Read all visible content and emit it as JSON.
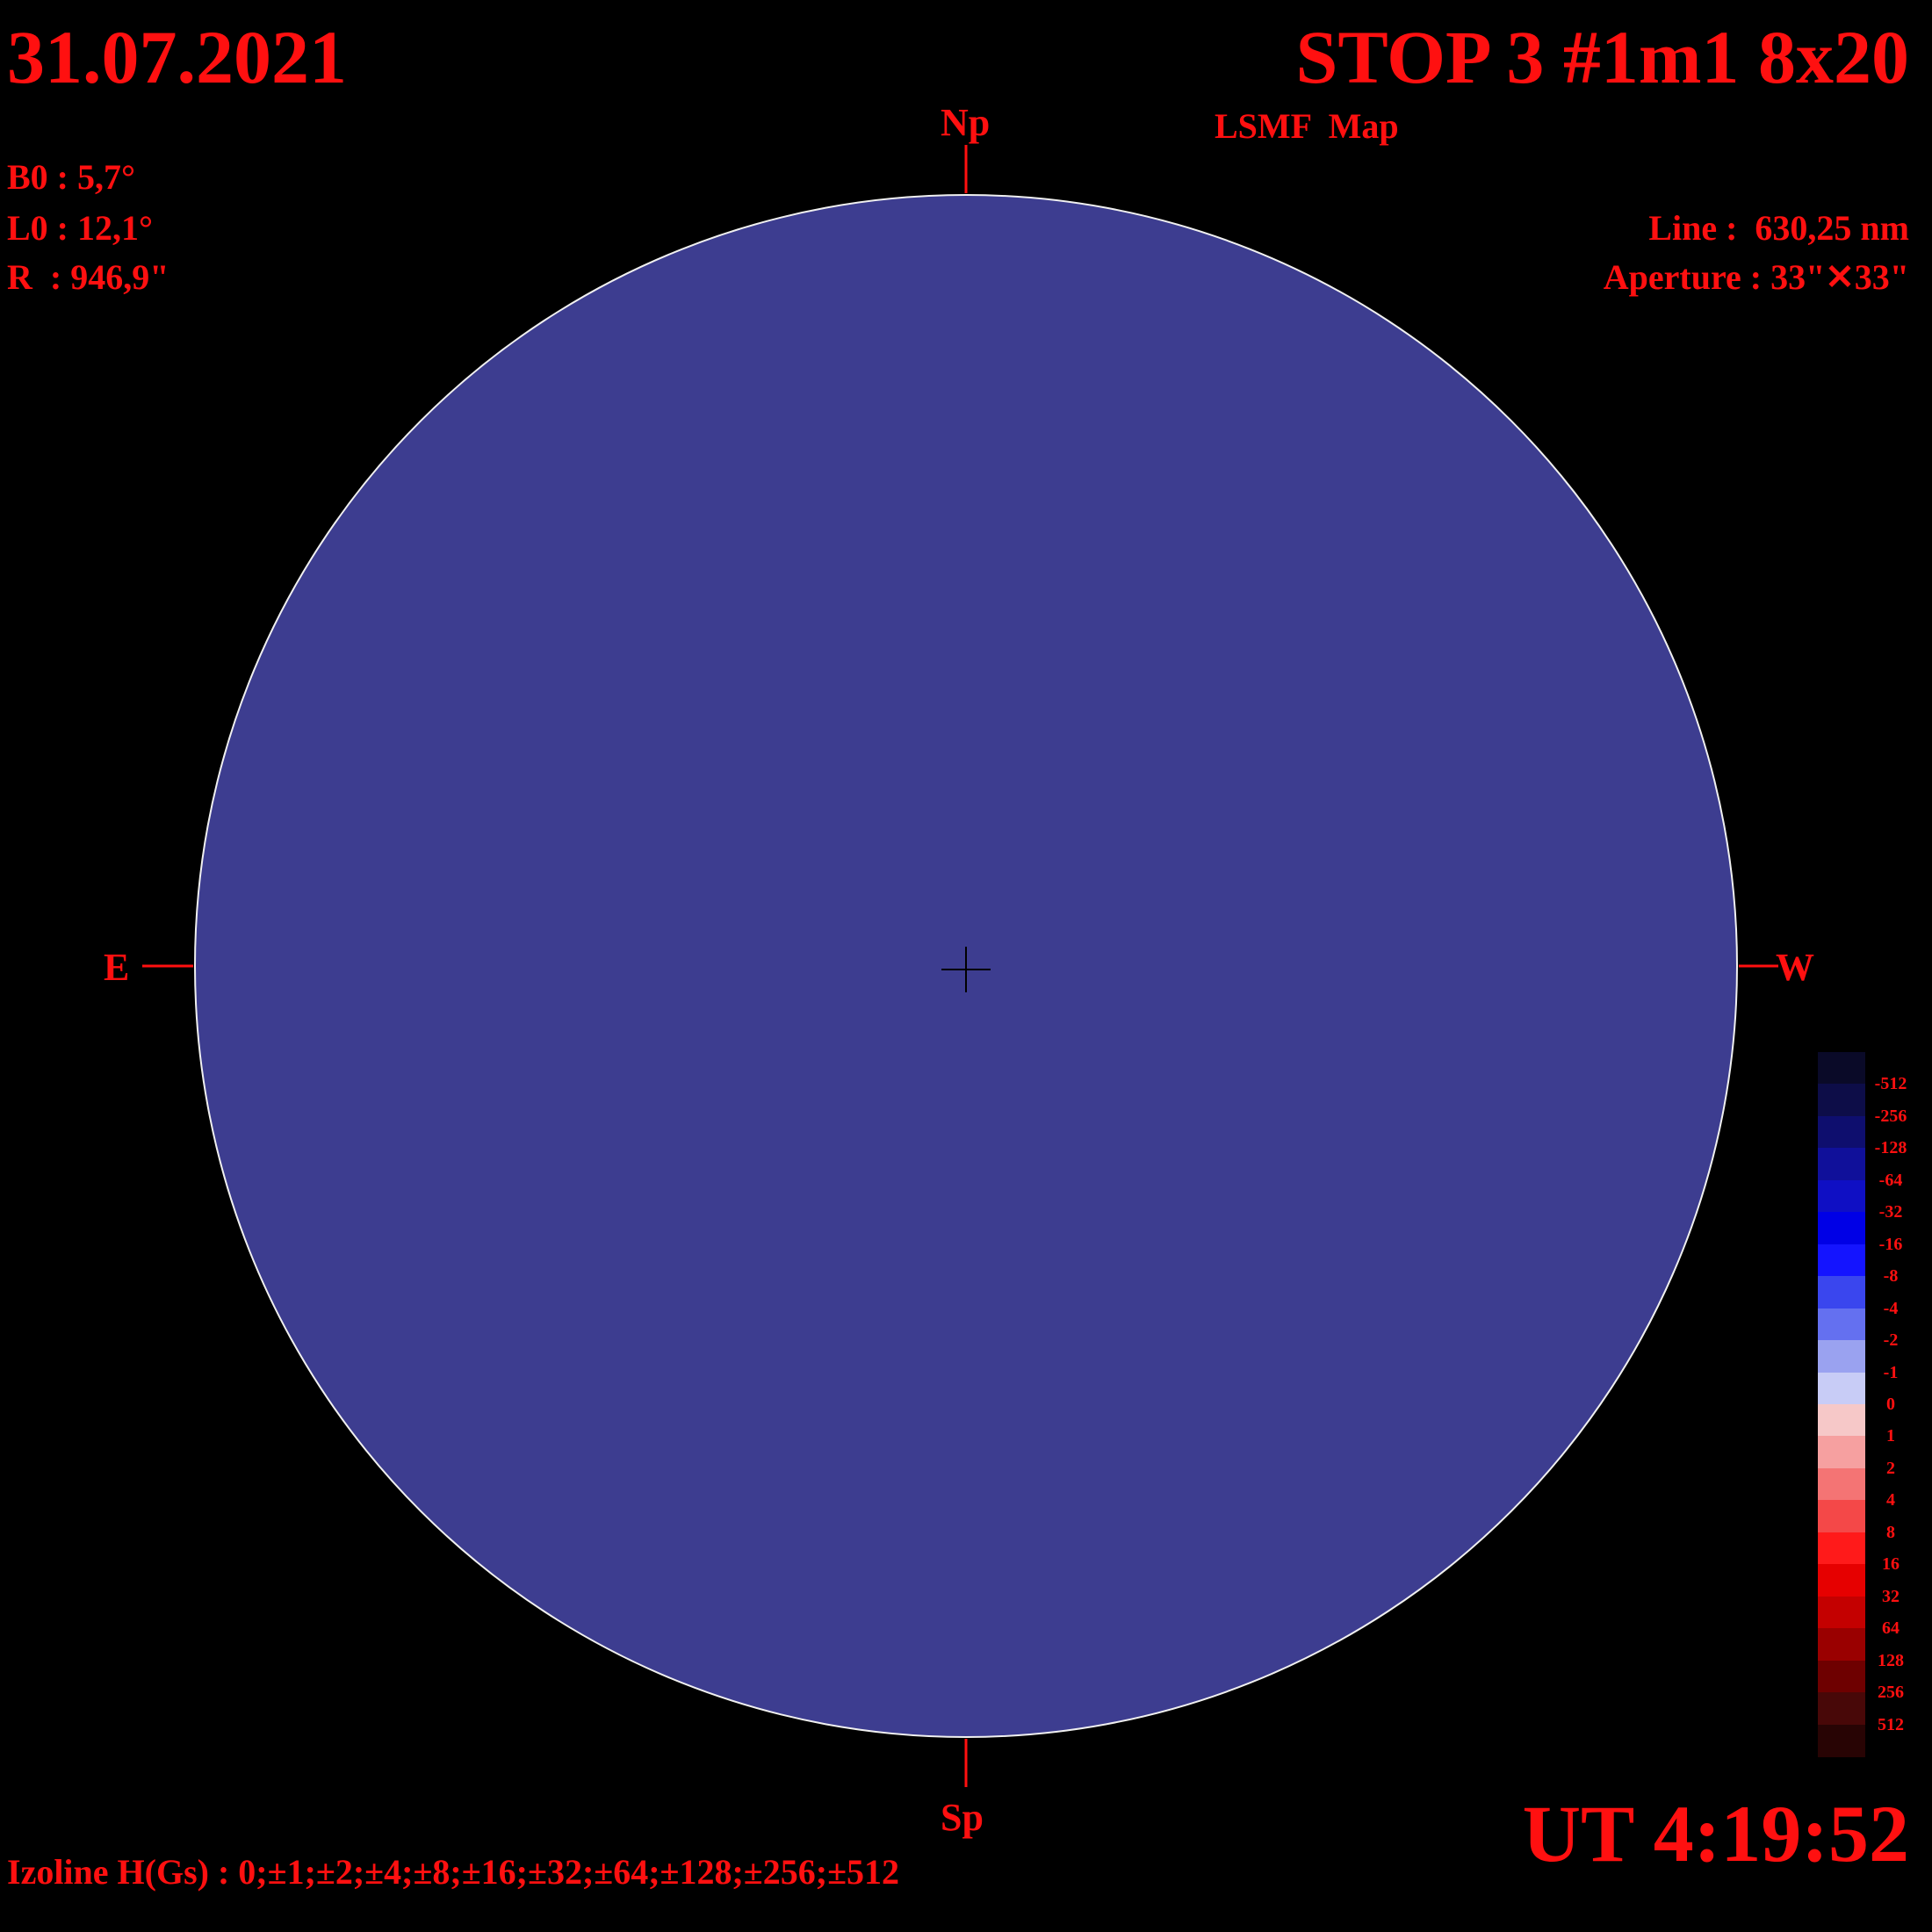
{
  "header": {
    "date": "31.07.2021",
    "title": "STOP 3 #1m1 8x20",
    "subtitle": "LSMF  Map"
  },
  "params": {
    "b0": "B0 : 5,7°",
    "l0": "L0 : 12,1°",
    "r": "R  : 946,9\""
  },
  "instrument": {
    "line": "Line :  630,25 nm",
    "aperture": "Aperture : 33\"✕33\""
  },
  "directions": {
    "north": "Np",
    "south": "Sp",
    "east": "E",
    "west": "W"
  },
  "footer": {
    "izoline": "Izoline H(Gs) : 0;±1;±2;±4;±8;±16;±32;±64;±128;±256;±512",
    "ut": "UT 4:19:52"
  },
  "colorbar": {
    "labels": [
      "-512",
      "-256",
      "-128",
      "-64",
      "-32",
      "-16",
      "-8",
      "-4",
      "-2",
      "-1",
      "0",
      "1",
      "2",
      "4",
      "8",
      "16",
      "32",
      "64",
      "128",
      "256",
      "512"
    ],
    "colors": [
      "#0a0a28",
      "#0d0d48",
      "#0e0e6e",
      "#10109a",
      "#0f0fc4",
      "#0000e6",
      "#1414ff",
      "#3a46ee",
      "#6470f0",
      "#9aa2f0",
      "#c8ccf6",
      "#f6c8c8",
      "#f6a0a0",
      "#f47474",
      "#f44848",
      "#ff1a1a",
      "#e60000",
      "#c40000",
      "#9a0000",
      "#6e0000",
      "#480808",
      "#280404"
    ]
  },
  "colors": {
    "text": "#ff1010",
    "background": "#000000",
    "isoline": "#ffffff"
  }
}
